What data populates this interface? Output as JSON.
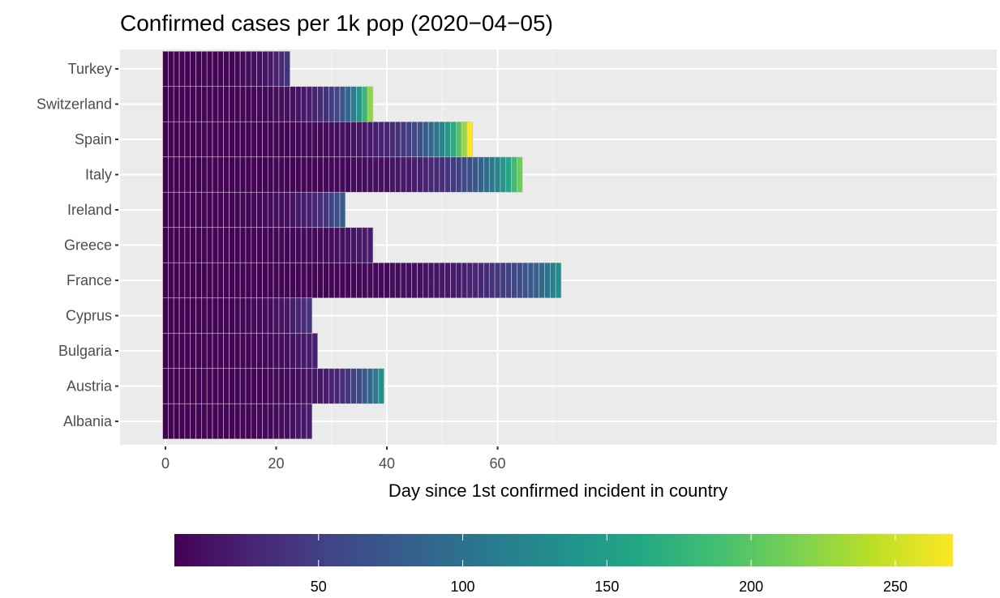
{
  "chart_data": {
    "type": "heatmap",
    "title": "Confirmed cases per 1k pop (2020−04−05)",
    "xlabel": "Day since 1st confirmed incident in country",
    "ylabel": "",
    "xlim": [
      -1.5,
      74.5
    ],
    "x_ticks": [
      0,
      20,
      40,
      60
    ],
    "x_tick_labels": [
      "0",
      "20",
      "40",
      "60"
    ],
    "grid": true,
    "legend": {
      "position": "bottom",
      "type": "colorbar",
      "range": [
        0,
        270
      ],
      "ticks": [
        50,
        100,
        150,
        200,
        250
      ],
      "tick_labels": [
        "50",
        "100",
        "150",
        "200",
        "250"
      ]
    },
    "color_scale": "viridis",
    "countries": [
      {
        "name": "Turkey",
        "last_day": 22,
        "final_value": 40
      },
      {
        "name": "Switzerland",
        "last_day": 37,
        "final_value": 225
      },
      {
        "name": "Spain",
        "last_day": 55,
        "final_value": 270
      },
      {
        "name": "Italy",
        "last_day": 64,
        "final_value": 210
      },
      {
        "name": "Ireland",
        "last_day": 32,
        "final_value": 80
      },
      {
        "name": "Greece",
        "last_day": 37,
        "final_value": 22
      },
      {
        "name": "France",
        "last_day": 71,
        "final_value": 130
      },
      {
        "name": "Cyprus",
        "last_day": 26,
        "final_value": 40
      },
      {
        "name": "Bulgaria",
        "last_day": 27,
        "final_value": 25
      },
      {
        "name": "Austria",
        "last_day": 39,
        "final_value": 135
      },
      {
        "name": "Albania",
        "last_day": 26,
        "final_value": 20
      }
    ]
  }
}
